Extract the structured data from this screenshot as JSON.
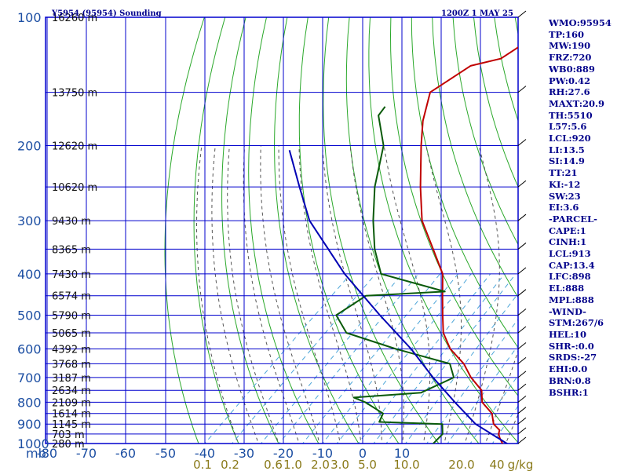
{
  "header": {
    "title": "Y5954 (95954) Sounding",
    "datetime": "1200Z  1 MAY 25"
  },
  "stats": [
    "WMO:95954",
    "TP:160",
    "MW:190",
    "FRZ:720",
    "WB0:889",
    "PW:0.42",
    "RH:27.6",
    "MAXT:20.9",
    "TH:5510",
    "L57:5.6",
    "LCL:920",
    "LI:13.5",
    "SI:14.9",
    "TT:21",
    "KI:-12",
    "SW:23",
    "EI:3.6",
    "-PARCEL-",
    "CAPE:1",
    "CINH:1",
    "LCL:913",
    "CAP:13.4",
    "LFC:898",
    "EL:888",
    "MPL:888",
    "-WIND-",
    "STM:267/6",
    "HEL:10",
    "SHR-:0.0",
    "SRDS:-27",
    "EHI:0.0",
    "BRN:0.8",
    "BSHR:1"
  ],
  "colors": {
    "isobar": "#0000cd",
    "dry_adiabat": "#2aa82a",
    "moist_adiabat": "#555555",
    "mixing_ratio": "#4da6d9",
    "temperature": "#c00000",
    "dewpoint": "#0a5a0a",
    "parcel": "#0000b4"
  },
  "chart_data": {
    "type": "line",
    "title": "Y5954 (95954) Sounding",
    "diagram": "skew-T log-P",
    "y_axis": {
      "label": "mb",
      "scale": "log",
      "range": [
        100,
        1000
      ],
      "ticks": [
        100,
        200,
        300,
        400,
        500,
        600,
        700,
        800,
        900,
        1000
      ]
    },
    "x_axis": {
      "label": "",
      "range": [
        -80,
        0
      ],
      "ticks": [
        -80,
        -70,
        -60,
        -50,
        -40,
        -30,
        -20,
        -10,
        0,
        10
      ]
    },
    "height_labels": [
      {
        "p": 100,
        "label": "16260 m"
      },
      {
        "p": 150,
        "label": "13750 m"
      },
      {
        "p": 200,
        "label": "12620 m"
      },
      {
        "p": 250,
        "label": "10620 m"
      },
      {
        "p": 300,
        "label": "9430 m"
      },
      {
        "p": 350,
        "label": "8365 m"
      },
      {
        "p": 400,
        "label": "7430 m"
      },
      {
        "p": 450,
        "label": "6574 m"
      },
      {
        "p": 500,
        "label": "5790 m"
      },
      {
        "p": 550,
        "label": "5065 m"
      },
      {
        "p": 600,
        "label": "4392 m"
      },
      {
        "p": 650,
        "label": "3768 m"
      },
      {
        "p": 700,
        "label": "3187 m"
      },
      {
        "p": 750,
        "label": "2634 m"
      },
      {
        "p": 800,
        "label": "2109 m"
      },
      {
        "p": 850,
        "label": "1614 m"
      },
      {
        "p": 900,
        "label": "1145 m"
      },
      {
        "p": 950,
        "label": "703 m"
      },
      {
        "p": 1000,
        "label": "280 m"
      }
    ],
    "mixing_ratio_labels": [
      {
        "label": "0.1",
        "x": -40
      },
      {
        "label": "0.2",
        "x": -33
      },
      {
        "label": "0.6",
        "x": -22
      },
      {
        "label": "1.0",
        "x": -17
      },
      {
        "label": "2.0",
        "x": -10
      },
      {
        "label": "3.0",
        "x": -5
      },
      {
        "label": "5.0",
        "x": 2
      },
      {
        "label": "10.0",
        "x": 12
      },
      {
        "label": "20.0",
        "x": 26
      },
      {
        "label": "40",
        "x": 35
      },
      {
        "label": "g/kg",
        "x": 41
      }
    ],
    "series": [
      {
        "name": "temperature",
        "points": [
          [
            1006,
            33.2
          ],
          [
            970,
            30.6
          ],
          [
            950,
            29.3
          ],
          [
            930,
            28.5
          ],
          [
            900,
            25.4
          ],
          [
            850,
            22.2
          ],
          [
            800,
            16.8
          ],
          [
            750,
            13.5
          ],
          [
            700,
            7.5
          ],
          [
            650,
            2.1
          ],
          [
            600,
            -5.2
          ],
          [
            550,
            -11.2
          ],
          [
            500,
            -16.0
          ],
          [
            450,
            -21.2
          ],
          [
            400,
            -26.9
          ],
          [
            350,
            -35.8
          ],
          [
            300,
            -46.1
          ],
          [
            250,
            -55.4
          ],
          [
            200,
            -66.1
          ],
          [
            175,
            -72.2
          ],
          [
            150,
            -77.9
          ],
          [
            130,
            -74.8
          ],
          [
            125,
            -69.1
          ],
          [
            100,
            -64.3
          ]
        ]
      },
      {
        "name": "dewpoint",
        "points": [
          [
            1006,
            15.5
          ],
          [
            950,
            15.3
          ],
          [
            900,
            12.6
          ],
          [
            890,
            -3.7
          ],
          [
            850,
            -5.0
          ],
          [
            800,
            -12.4
          ],
          [
            780,
            -16.5
          ],
          [
            760,
            -1.0
          ],
          [
            700,
            3.2
          ],
          [
            650,
            -1.4
          ],
          [
            600,
            -18.8
          ],
          [
            550,
            -35.4
          ],
          [
            500,
            -42.6
          ],
          [
            470,
            -41.2
          ],
          [
            450,
            -40.3
          ],
          [
            440,
            -21.7
          ],
          [
            400,
            -42.3
          ],
          [
            350,
            -50.4
          ],
          [
            300,
            -58.3
          ],
          [
            250,
            -66.8
          ],
          [
            200,
            -75.5
          ],
          [
            170,
            -84.7
          ],
          [
            162,
            -85.4
          ]
        ]
      },
      {
        "name": "parcel",
        "points": [
          [
            1006,
            34.6
          ],
          [
            900,
            20.9
          ],
          [
            800,
            10.0
          ],
          [
            700,
            -2.0
          ],
          [
            600,
            -15.0
          ],
          [
            500,
            -31.7
          ],
          [
            400,
            -51.4
          ],
          [
            300,
            -74.2
          ],
          [
            250,
            -85.6
          ],
          [
            205,
            -97.8
          ]
        ]
      }
    ],
    "wind_barbs": [
      {
        "p": 100
      },
      {
        "p": 150
      },
      {
        "p": 200
      },
      {
        "p": 250
      },
      {
        "p": 300
      },
      {
        "p": 350
      },
      {
        "p": 400
      },
      {
        "p": 450
      },
      {
        "p": 500
      },
      {
        "p": 550
      },
      {
        "p": 600
      },
      {
        "p": 650
      },
      {
        "p": 700
      },
      {
        "p": 750
      },
      {
        "p": 800
      },
      {
        "p": 850
      },
      {
        "p": 900
      },
      {
        "p": 950
      },
      {
        "p": 1000
      }
    ]
  }
}
